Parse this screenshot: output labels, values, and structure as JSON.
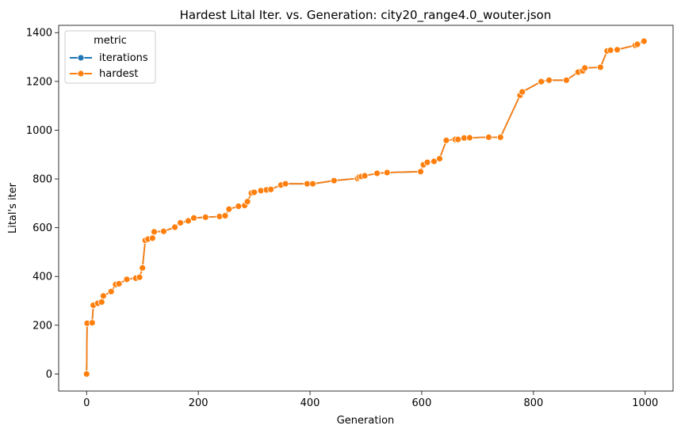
{
  "chart_data": {
    "type": "line",
    "title": "Hardest Lital Iter. vs. Generation: city20_range4.0_wouter.json",
    "xlabel": "Generation",
    "ylabel": "Lital's iter",
    "xlim": [
      -50,
      1050
    ],
    "ylim": [
      -70,
      1430
    ],
    "xticks": [
      0,
      200,
      400,
      600,
      800,
      1000
    ],
    "yticks": [
      0,
      200,
      400,
      600,
      800,
      1000,
      1200,
      1400
    ],
    "legend": {
      "title": "metric",
      "placement": "top-left"
    },
    "series": [
      {
        "name": "iterations",
        "color": "#1f77b4",
        "x": [
          0,
          1,
          10,
          12,
          20,
          27,
          30,
          44,
          52,
          58,
          72,
          88,
          95,
          100,
          105,
          110,
          118,
          121,
          138,
          158,
          168,
          182,
          192,
          213,
          238,
          248,
          255,
          272,
          283,
          288,
          295,
          300,
          312,
          322,
          330,
          348,
          356,
          395,
          405,
          443,
          485,
          488,
          492,
          498,
          520,
          538,
          598,
          603,
          610,
          622,
          632,
          644,
          660,
          665,
          676,
          686,
          720,
          741,
          776,
          780,
          814,
          828,
          859,
          880,
          888,
          892,
          920,
          932,
          938,
          950,
          982,
          986,
          998
        ],
        "y": [
          0,
          208,
          210,
          282,
          290,
          295,
          320,
          338,
          367,
          370,
          388,
          393,
          397,
          435,
          548,
          553,
          557,
          583,
          585,
          602,
          620,
          628,
          640,
          643,
          646,
          649,
          676,
          688,
          691,
          707,
          742,
          745,
          752,
          755,
          757,
          775,
          780,
          780,
          780,
          793,
          802,
          808,
          810,
          813,
          823,
          826,
          830,
          858,
          868,
          872,
          883,
          958,
          962,
          962,
          968,
          969,
          971,
          971,
          1143,
          1157,
          1199,
          1205,
          1205,
          1238,
          1243,
          1255,
          1258,
          1325,
          1328,
          1330,
          1348,
          1352,
          1365
        ]
      },
      {
        "name": "hardest",
        "color": "#ff7f0e",
        "x": [
          0,
          1,
          10,
          12,
          20,
          27,
          30,
          44,
          52,
          58,
          72,
          88,
          95,
          100,
          105,
          110,
          118,
          121,
          138,
          158,
          168,
          182,
          192,
          213,
          238,
          248,
          255,
          272,
          283,
          288,
          295,
          300,
          312,
          322,
          330,
          348,
          356,
          395,
          405,
          443,
          485,
          488,
          492,
          498,
          520,
          538,
          598,
          603,
          610,
          622,
          632,
          644,
          660,
          665,
          676,
          686,
          720,
          741,
          776,
          780,
          814,
          828,
          859,
          880,
          888,
          892,
          920,
          932,
          938,
          950,
          982,
          986,
          998
        ],
        "y": [
          0,
          208,
          210,
          282,
          290,
          295,
          320,
          338,
          367,
          370,
          388,
          393,
          397,
          435,
          548,
          553,
          557,
          583,
          585,
          602,
          620,
          628,
          640,
          643,
          646,
          649,
          676,
          688,
          691,
          707,
          742,
          745,
          752,
          755,
          757,
          775,
          780,
          780,
          780,
          793,
          802,
          808,
          810,
          813,
          823,
          826,
          830,
          858,
          868,
          872,
          883,
          958,
          962,
          962,
          968,
          969,
          971,
          971,
          1143,
          1157,
          1199,
          1205,
          1205,
          1238,
          1243,
          1255,
          1258,
          1325,
          1328,
          1330,
          1348,
          1352,
          1365
        ]
      }
    ]
  }
}
